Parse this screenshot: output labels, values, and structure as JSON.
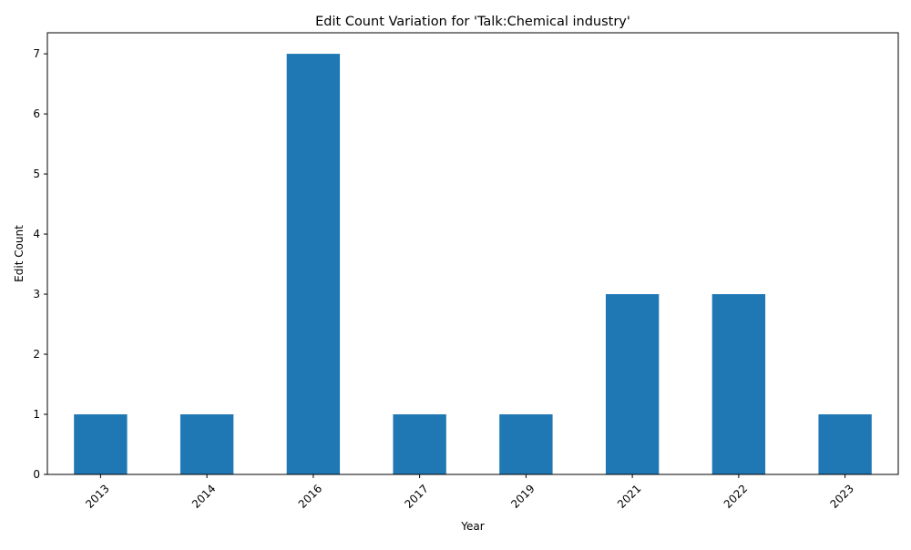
{
  "chart_data": {
    "type": "bar",
    "title": "Edit Count Variation for 'Talk:Chemical industry'",
    "xlabel": "Year",
    "ylabel": "Edit Count",
    "categories": [
      "2013",
      "2014",
      "2016",
      "2017",
      "2019",
      "2021",
      "2022",
      "2023"
    ],
    "values": [
      1,
      1,
      7,
      1,
      1,
      3,
      3,
      1
    ],
    "ylim": [
      0,
      7.35
    ],
    "yticks": [
      0,
      1,
      2,
      3,
      4,
      5,
      6,
      7
    ],
    "grid": false,
    "legend": "none",
    "bar_color": "#1f77b4",
    "x_tick_rotation_deg": 45
  }
}
